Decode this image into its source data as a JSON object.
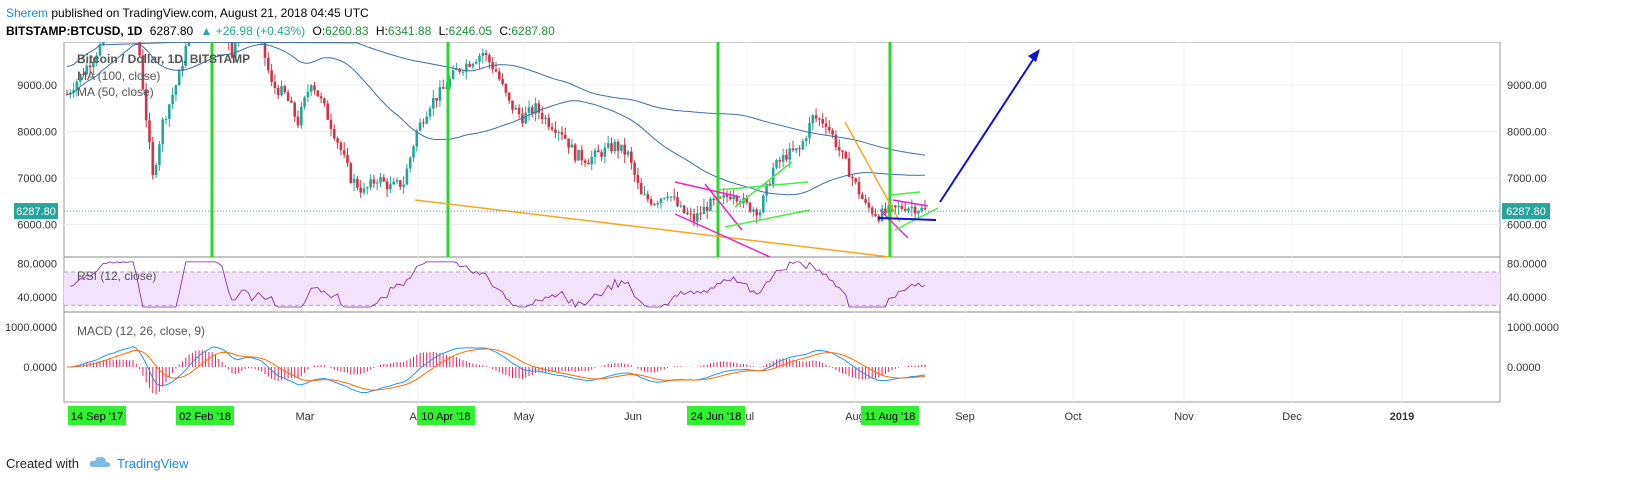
{
  "header": {
    "author": "Sherem",
    "published_text": "published on TradingView.com, August 21, 2018 04:45 UTC",
    "symbol": "BITSTAMP:BTCUSD, 1D",
    "last": "6287.80",
    "change": "▲ +26.98 (+0.43%)",
    "o_label": "O:",
    "o_val": "6260.83",
    "h_label": "H:",
    "h_val": "6341.88",
    "l_label": "L:",
    "l_val": "6246.05",
    "c_label": "C:",
    "c_val": "6287.80"
  },
  "legend": {
    "title": "Bitcoin / Dollar, 1D, BITSTAMP",
    "ma100": "MA (100, close)",
    "ma50": "MA (50, close)",
    "rsi": "RSI (12, close)",
    "macd": "MACD (12, 26, close, 9)"
  },
  "price_tag": "6287.80",
  "footer": {
    "created_with": "Created with",
    "brand": "TradingView"
  },
  "colors": {
    "bull": "#26a69a",
    "bear": "#d0344a",
    "ma": "#3a6fa5",
    "green_line": "#22dd22",
    "orange": "#f5a623",
    "magenta": "#ee22cc",
    "lime": "#44ee44",
    "blue": "#1010d0",
    "rsi": "#7b1fa2",
    "macd_line": "#2196f3",
    "signal": "#ff6d00",
    "hist": "#e91e63",
    "date_badge": "#33ee33"
  },
  "chart_data": {
    "type": "candlestick",
    "price_axis": {
      "ticks": [
        6000,
        7000,
        8000,
        9000
      ],
      "labels": [
        "6000.00",
        "7000.00",
        "8000.00",
        "9000.00"
      ]
    },
    "rsi_axis": {
      "ticks": [
        40,
        80
      ],
      "labels": [
        "40.0000",
        "80.0000"
      ]
    },
    "macd_axis": {
      "ticks": [
        0,
        1000
      ],
      "labels": [
        "0.0000",
        "1000.0000"
      ]
    },
    "time_axis": [
      "Mar",
      "Apr",
      "May",
      "Jun",
      "Jul",
      "Aug",
      "Sep",
      "Oct",
      "Nov",
      "Dec",
      "2019"
    ],
    "date_badges": [
      "14 Sep '17",
      "02 Feb '18",
      "10 Apr '18",
      "24 Jun '18",
      "11 Aug '18"
    ],
    "close_series": [
      {
        "d": 0,
        "p": 8800
      },
      {
        "d": 8,
        "p": 9600
      },
      {
        "d": 15,
        "p": 10400
      },
      {
        "d": 20,
        "p": 11000
      },
      {
        "d": 24,
        "p": 8300
      },
      {
        "d": 26,
        "p": 7000
      },
      {
        "d": 29,
        "p": 8200
      },
      {
        "d": 34,
        "p": 9200
      },
      {
        "d": 38,
        "p": 10400
      },
      {
        "d": 44,
        "p": 11200
      },
      {
        "d": 50,
        "p": 9700
      },
      {
        "d": 54,
        "p": 10800
      },
      {
        "d": 58,
        "p": 10200
      },
      {
        "d": 62,
        "p": 9000
      },
      {
        "d": 66,
        "p": 8800
      },
      {
        "d": 70,
        "p": 8200
      },
      {
        "d": 74,
        "p": 9100
      },
      {
        "d": 78,
        "p": 8500
      },
      {
        "d": 82,
        "p": 7800
      },
      {
        "d": 86,
        "p": 7000
      },
      {
        "d": 90,
        "p": 6700
      },
      {
        "d": 94,
        "p": 7000
      },
      {
        "d": 98,
        "p": 6800
      },
      {
        "d": 102,
        "p": 6900
      },
      {
        "d": 106,
        "p": 8000
      },
      {
        "d": 110,
        "p": 8600
      },
      {
        "d": 114,
        "p": 8900
      },
      {
        "d": 118,
        "p": 9300
      },
      {
        "d": 122,
        "p": 9500
      },
      {
        "d": 126,
        "p": 9700
      },
      {
        "d": 130,
        "p": 9300
      },
      {
        "d": 134,
        "p": 8600
      },
      {
        "d": 138,
        "p": 8300
      },
      {
        "d": 142,
        "p": 8500
      },
      {
        "d": 146,
        "p": 8200
      },
      {
        "d": 150,
        "p": 8000
      },
      {
        "d": 154,
        "p": 7500
      },
      {
        "d": 158,
        "p": 7400
      },
      {
        "d": 162,
        "p": 7550
      },
      {
        "d": 166,
        "p": 7700
      },
      {
        "d": 170,
        "p": 7500
      },
      {
        "d": 174,
        "p": 6600
      },
      {
        "d": 178,
        "p": 6500
      },
      {
        "d": 182,
        "p": 6700
      },
      {
        "d": 186,
        "p": 6300
      },
      {
        "d": 190,
        "p": 6100
      },
      {
        "d": 194,
        "p": 6400
      },
      {
        "d": 198,
        "p": 6500
      },
      {
        "d": 202,
        "p": 6700
      },
      {
        "d": 206,
        "p": 6400
      },
      {
        "d": 210,
        "p": 6300
      },
      {
        "d": 214,
        "p": 7200
      },
      {
        "d": 218,
        "p": 7500
      },
      {
        "d": 222,
        "p": 7600
      },
      {
        "d": 226,
        "p": 8300
      },
      {
        "d": 230,
        "p": 8200
      },
      {
        "d": 234,
        "p": 7600
      },
      {
        "d": 238,
        "p": 7000
      },
      {
        "d": 242,
        "p": 6400
      },
      {
        "d": 246,
        "p": 6200
      },
      {
        "d": 250,
        "p": 6300
      },
      {
        "d": 254,
        "p": 6400
      },
      {
        "d": 258,
        "p": 6350
      },
      {
        "d": 260,
        "p": 6288
      }
    ]
  }
}
